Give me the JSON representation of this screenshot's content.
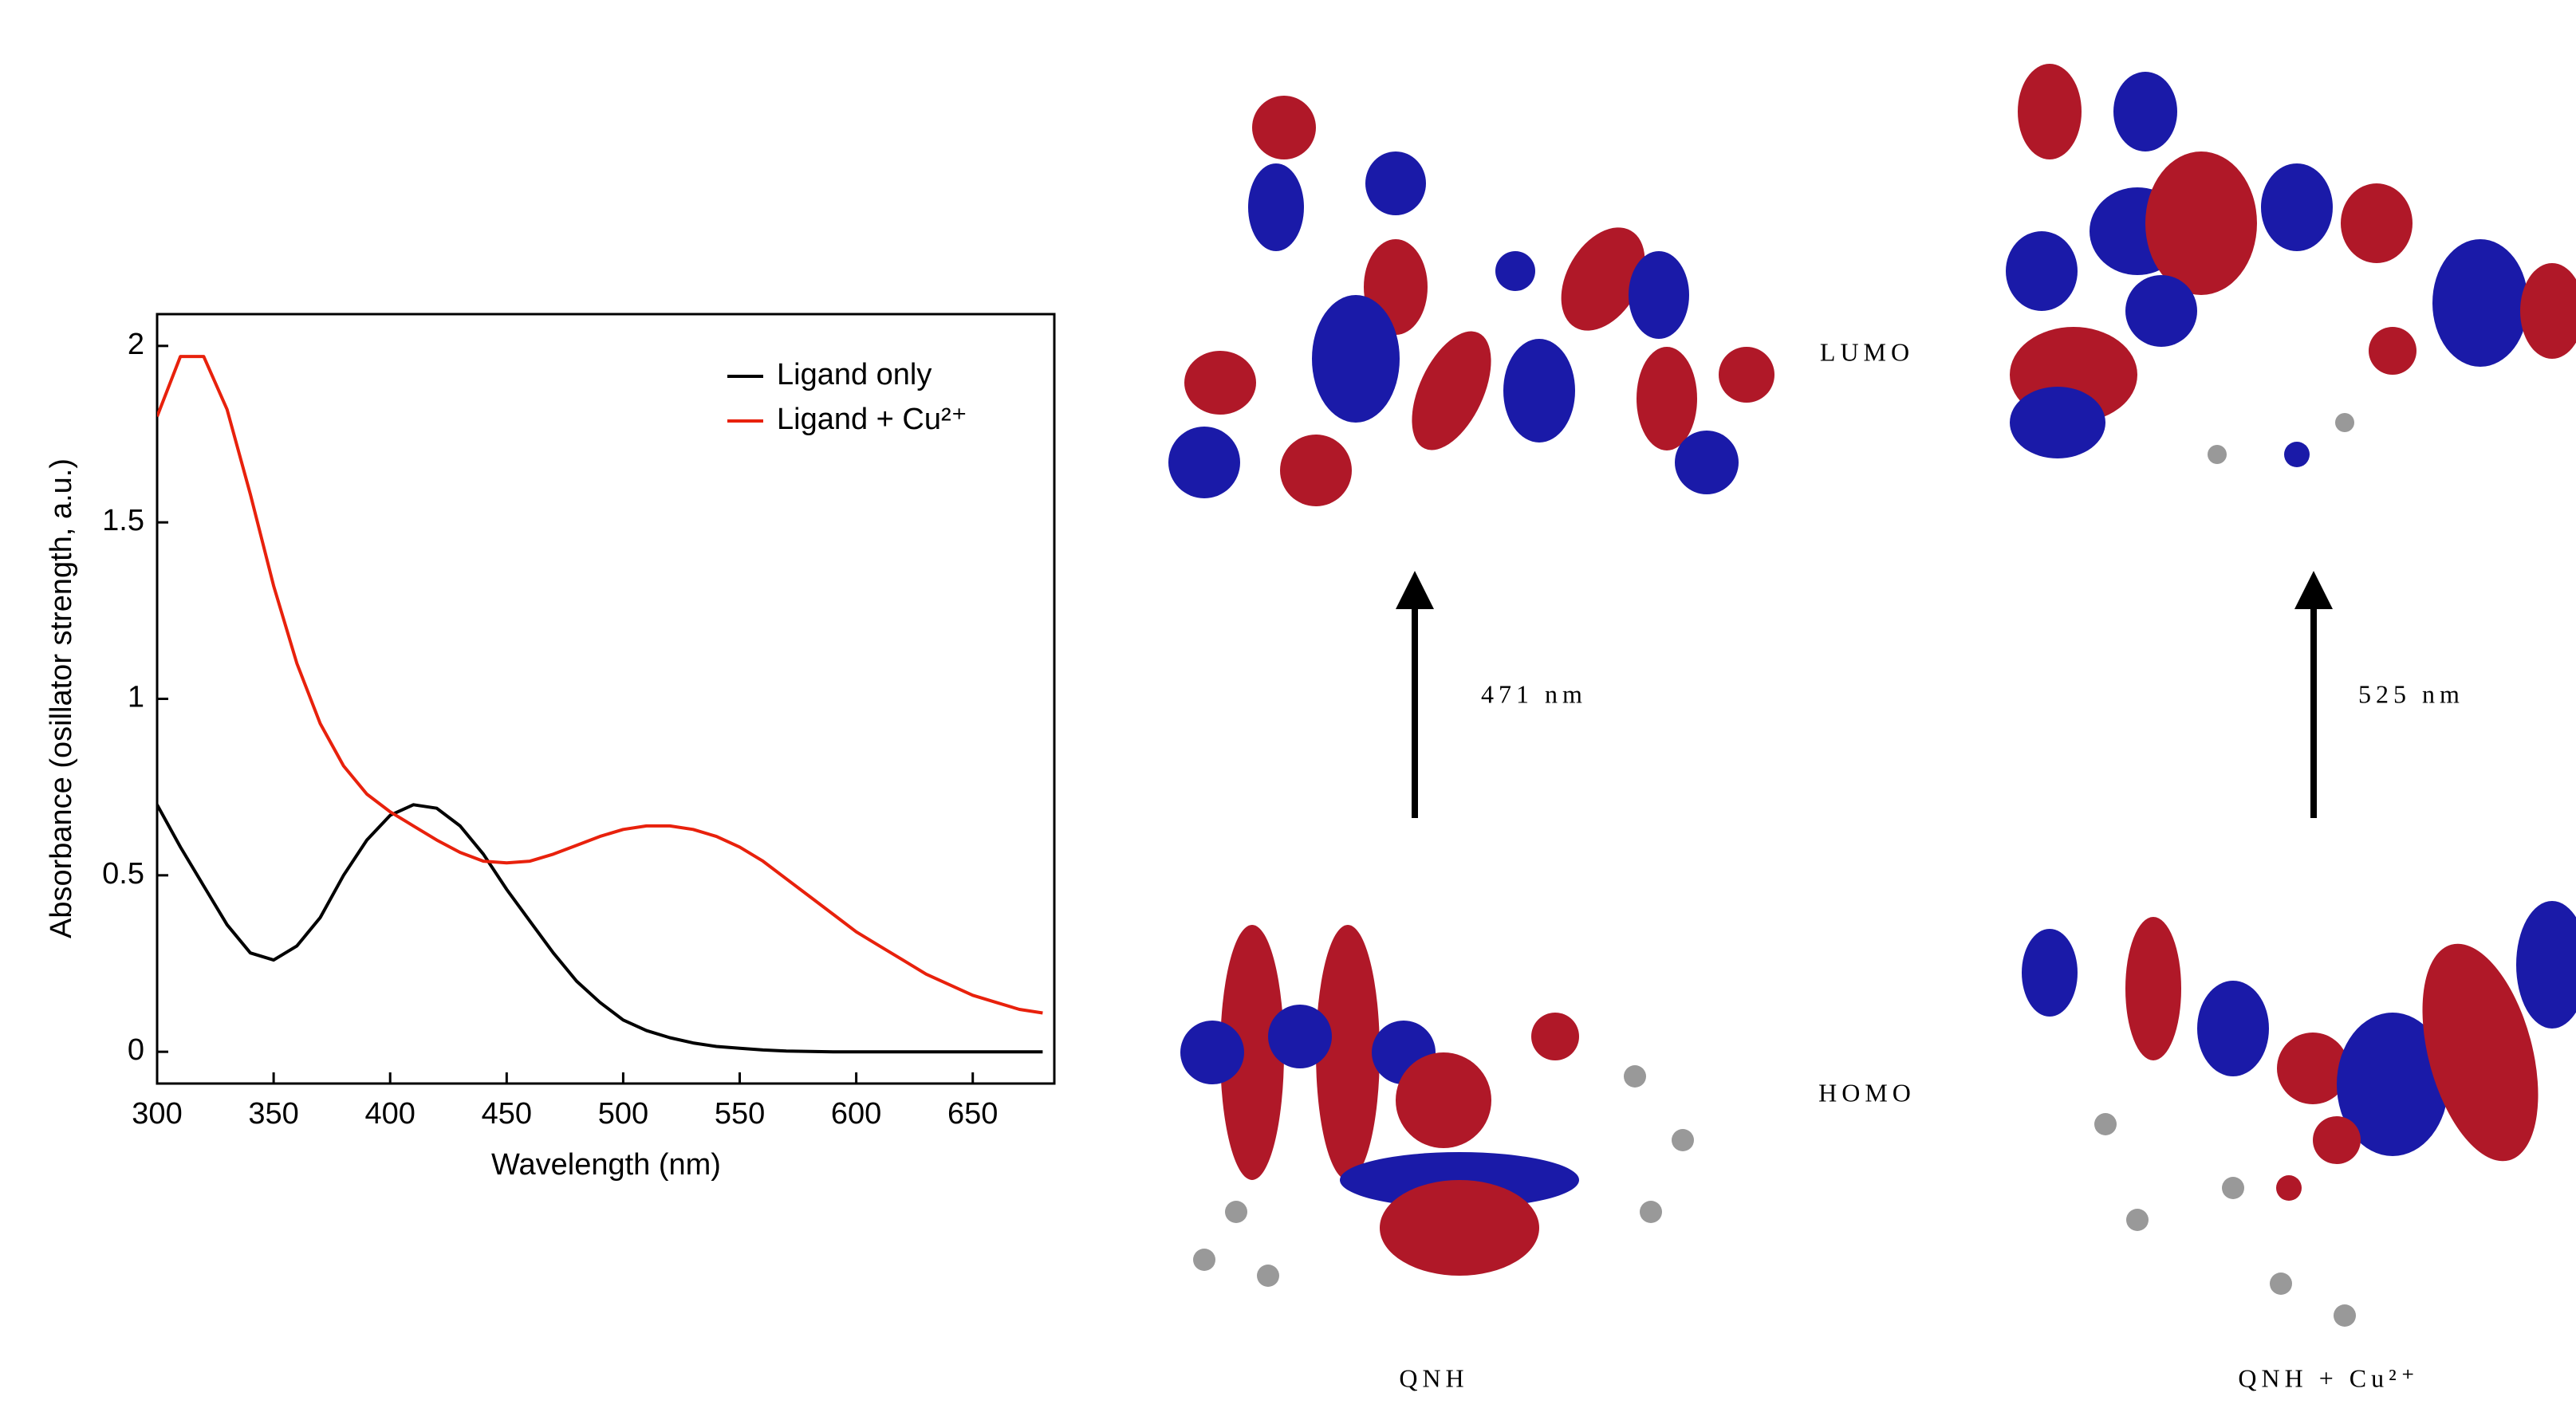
{
  "chart_data": {
    "type": "line",
    "x_label": "Wavelength (nm)",
    "y_label": "Absorbance (osillator strength, a.u.)",
    "x": [
      300,
      310,
      320,
      330,
      340,
      350,
      360,
      370,
      380,
      390,
      400,
      410,
      420,
      430,
      440,
      450,
      460,
      470,
      480,
      490,
      500,
      510,
      520,
      530,
      540,
      550,
      560,
      570,
      580,
      590,
      600,
      610,
      620,
      630,
      640,
      650,
      660,
      670,
      680
    ],
    "series": [
      {
        "name": "Ligand only",
        "color": "#000000",
        "values": [
          0.7,
          0.58,
          0.47,
          0.36,
          0.28,
          0.26,
          0.3,
          0.38,
          0.5,
          0.6,
          0.67,
          0.7,
          0.69,
          0.64,
          0.56,
          0.46,
          0.37,
          0.28,
          0.2,
          0.14,
          0.09,
          0.06,
          0.04,
          0.025,
          0.015,
          0.01,
          0.005,
          0.002,
          0.001,
          0,
          0,
          0,
          0,
          0,
          0,
          0,
          0,
          0,
          0
        ]
      },
      {
        "name": "Ligand + Cu²⁺",
        "color": "#e8210c",
        "values": [
          1.8,
          1.97,
          1.97,
          1.82,
          1.58,
          1.32,
          1.1,
          0.93,
          0.81,
          0.73,
          0.68,
          0.64,
          0.6,
          0.565,
          0.54,
          0.535,
          0.54,
          0.56,
          0.585,
          0.61,
          0.63,
          0.64,
          0.64,
          0.63,
          0.61,
          0.58,
          0.54,
          0.49,
          0.44,
          0.39,
          0.34,
          0.3,
          0.26,
          0.22,
          0.19,
          0.16,
          0.14,
          0.12,
          0.11
        ]
      }
    ],
    "xlim": [
      300,
      685
    ],
    "ylim": [
      -0.09,
      2.09
    ],
    "xticks": [
      300,
      350,
      400,
      450,
      500,
      550,
      600,
      650
    ],
    "yticks": [
      0,
      0.5,
      1,
      1.5,
      2
    ],
    "legend": "upper-right"
  },
  "diagram": {
    "lumo_label": "LUMO",
    "homo_label": "HOMO",
    "left_transition": "471 nm",
    "right_transition": "525 nm",
    "left_molecule": "QNH",
    "right_molecule": "QNH + Cu²⁺"
  }
}
